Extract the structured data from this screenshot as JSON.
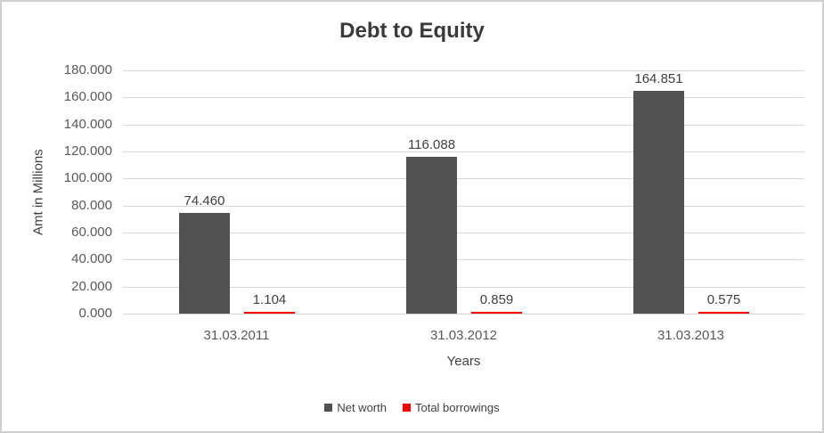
{
  "window": {
    "frame_border_color": "#d0cece",
    "background_color": "#ffffff"
  },
  "chart_data": {
    "type": "bar",
    "title": "Debt to Equity",
    "categories": [
      "31.03.2011",
      "31.03.2012",
      "31.03.2013"
    ],
    "series": [
      {
        "name": "Net worth",
        "color": "#515151",
        "values": [
          74.46,
          116.088,
          164.851
        ]
      },
      {
        "name": "Total borrowings",
        "color": "#ff0000",
        "values": [
          1.104,
          0.859,
          0.575
        ]
      }
    ],
    "data_label_texts": [
      [
        "74.460",
        "116.088",
        "164.851"
      ],
      [
        "1.104",
        "0.859",
        "0.575"
      ]
    ],
    "xlabel": "Years",
    "ylabel": "Amt in Millions",
    "ylim": [
      0,
      180
    ],
    "ytick_step": 20,
    "ytick_labels": [
      "0.000",
      "20.000",
      "40.000",
      "60.000",
      "80.000",
      "100.000",
      "120.000",
      "140.000",
      "160.000",
      "180.000"
    ],
    "value_decimals": 3,
    "grid": true,
    "data_labels": true,
    "legend_position": "bottom",
    "colors": {
      "title": "#3a3a3a",
      "axis_title": "#404040",
      "tick_label": "#595959",
      "data_label": "#404040",
      "gridline": "#d9d9d9",
      "legend_text": "#404040"
    }
  }
}
